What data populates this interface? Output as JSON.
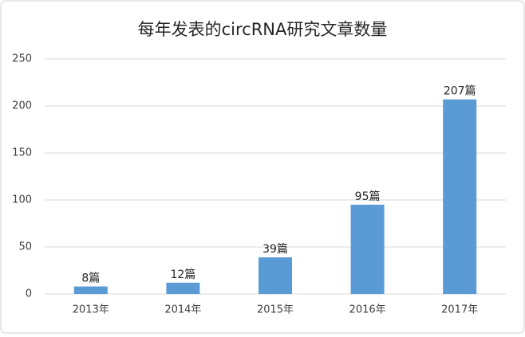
{
  "chart_data": {
    "type": "bar",
    "title": "每年发表的circRNA研究文章数量",
    "categories": [
      "2013年",
      "2014年",
      "2015年",
      "2016年",
      "2017年"
    ],
    "values": [
      8,
      12,
      39,
      95,
      207
    ],
    "value_labels": [
      "8篇",
      "12篇",
      "39篇",
      "95篇",
      "207篇"
    ],
    "color": "#5b9bd5",
    "ylim": [
      0,
      250
    ],
    "yticks": [
      0,
      50,
      100,
      150,
      200,
      250
    ],
    "grid": true
  }
}
